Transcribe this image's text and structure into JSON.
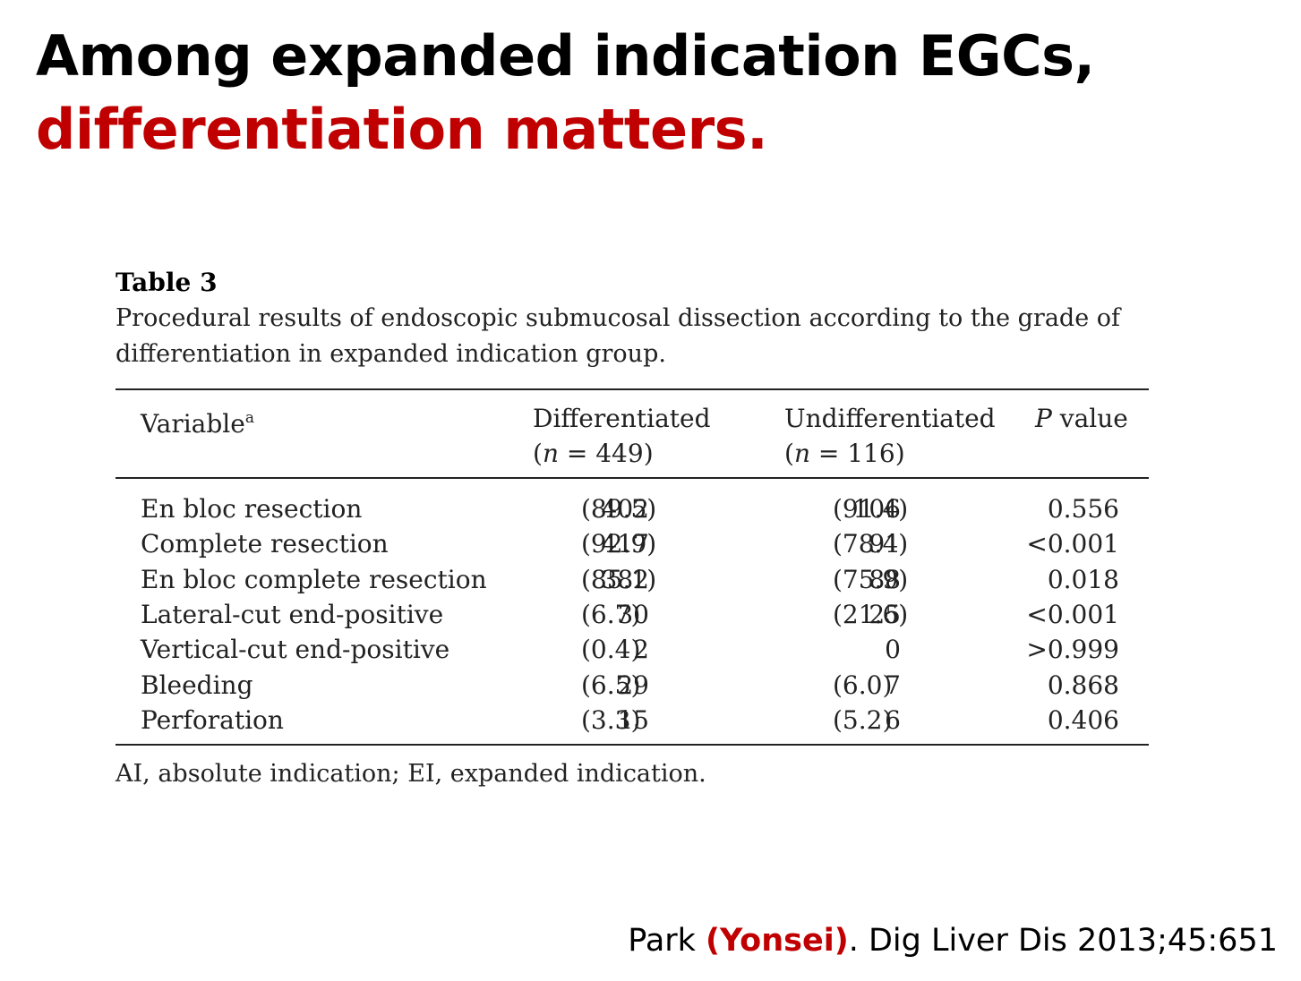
{
  "slide": {
    "title_line1": "Among expanded indication EGCs,",
    "title_line2": "differentiation matters."
  },
  "table": {
    "label": "Table 3",
    "caption": "Procedural results of endoscopic submucosal dissection according to the grade of differentiation in expanded indication group.",
    "headers": {
      "variable": "Variable",
      "variable_sup": "a",
      "diff": "Differentiated",
      "diff_n_open": "(",
      "diff_n_letter": "n",
      "diff_n_rest": " = 449)",
      "undiff": "Undifferentiated",
      "undiff_n_open": "(",
      "undiff_n_letter": "n",
      "undiff_n_rest": " = 116)",
      "p_letter": "P",
      "p_rest": " value"
    },
    "rows": [
      {
        "variable": "En bloc resection",
        "diff_n": "402",
        "diff_pct": "(89.5)",
        "undiff_n": "106",
        "undiff_pct": "(91.4)",
        "p": "0.556"
      },
      {
        "variable": "Complete resection",
        "diff_n": "417",
        "diff_pct": "(92.9)",
        "undiff_n": "91",
        "undiff_pct": "(78.4)",
        "p": "<0.001"
      },
      {
        "variable": "En bloc complete resection",
        "diff_n": "382",
        "diff_pct": "(85.1)",
        "undiff_n": "88",
        "undiff_pct": "(75.9)",
        "p": "0.018"
      },
      {
        "variable": "Lateral-cut end-positive",
        "diff_n": "30",
        "diff_pct": "(6.7)",
        "undiff_n": "25",
        "undiff_pct": "(21.6)",
        "p": "<0.001"
      },
      {
        "variable": "Vertical-cut end-positive",
        "diff_n": "2",
        "diff_pct": "(0.4)",
        "undiff_n": "0",
        "undiff_pct": "",
        "p": ">0.999"
      },
      {
        "variable": "Bleeding",
        "diff_n": "29",
        "diff_pct": "(6.5)",
        "undiff_n": "7",
        "undiff_pct": "(6.0)",
        "p": "0.868"
      },
      {
        "variable": "Perforation",
        "diff_n": "15",
        "diff_pct": "(3.3)",
        "undiff_n": "6",
        "undiff_pct": "(5.2)",
        "p": "0.406"
      }
    ],
    "footnote": "AI, absolute indication; EI, expanded indication."
  },
  "citation": {
    "author": "Park ",
    "institution": "(Yonsei)",
    "source": ". Dig Liver Dis 2013;45:651"
  }
}
